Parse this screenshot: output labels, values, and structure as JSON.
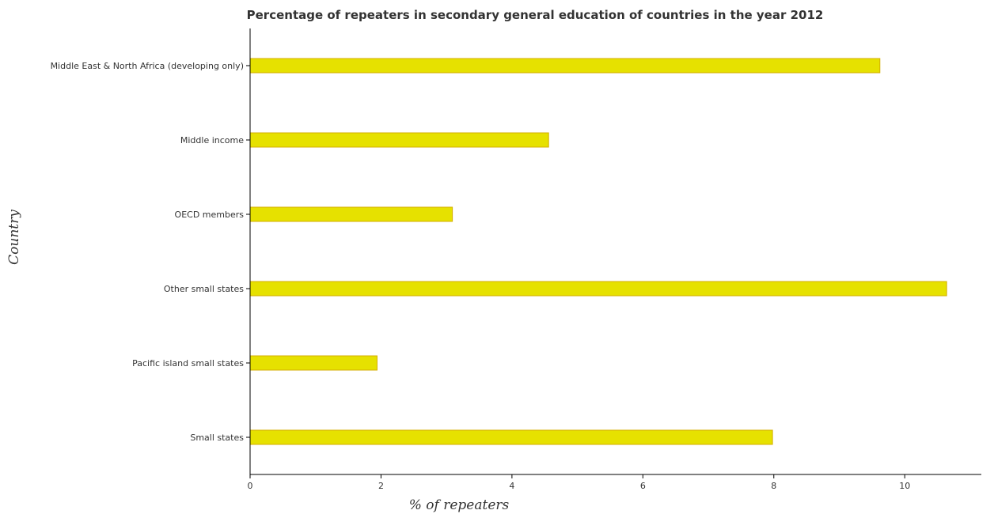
{
  "chart_data": {
    "type": "bar",
    "orientation": "horizontal",
    "title": "Percentage of repeaters in secondary general education of countries in the year 2012",
    "xlabel": "% of repeaters",
    "ylabel": "Country",
    "xlim": [
      0,
      11.17
    ],
    "xticks": [
      0,
      2,
      4,
      6,
      8,
      10
    ],
    "xtick_labels": [
      "0",
      "2",
      "4",
      "6",
      "8",
      "10"
    ],
    "categories": [
      "Middle East & North Africa (developing only)",
      "Middle income",
      "OECD members",
      "Other small states",
      "Pacific island small states",
      "Small states"
    ],
    "values": [
      9.62,
      4.56,
      3.09,
      10.64,
      1.94,
      7.98
    ],
    "grid": false,
    "legend": "none",
    "colors": {
      "bar": "#e6e100",
      "bar_edge": "#d4af00",
      "axis": "#000000",
      "text": "#333333"
    }
  }
}
